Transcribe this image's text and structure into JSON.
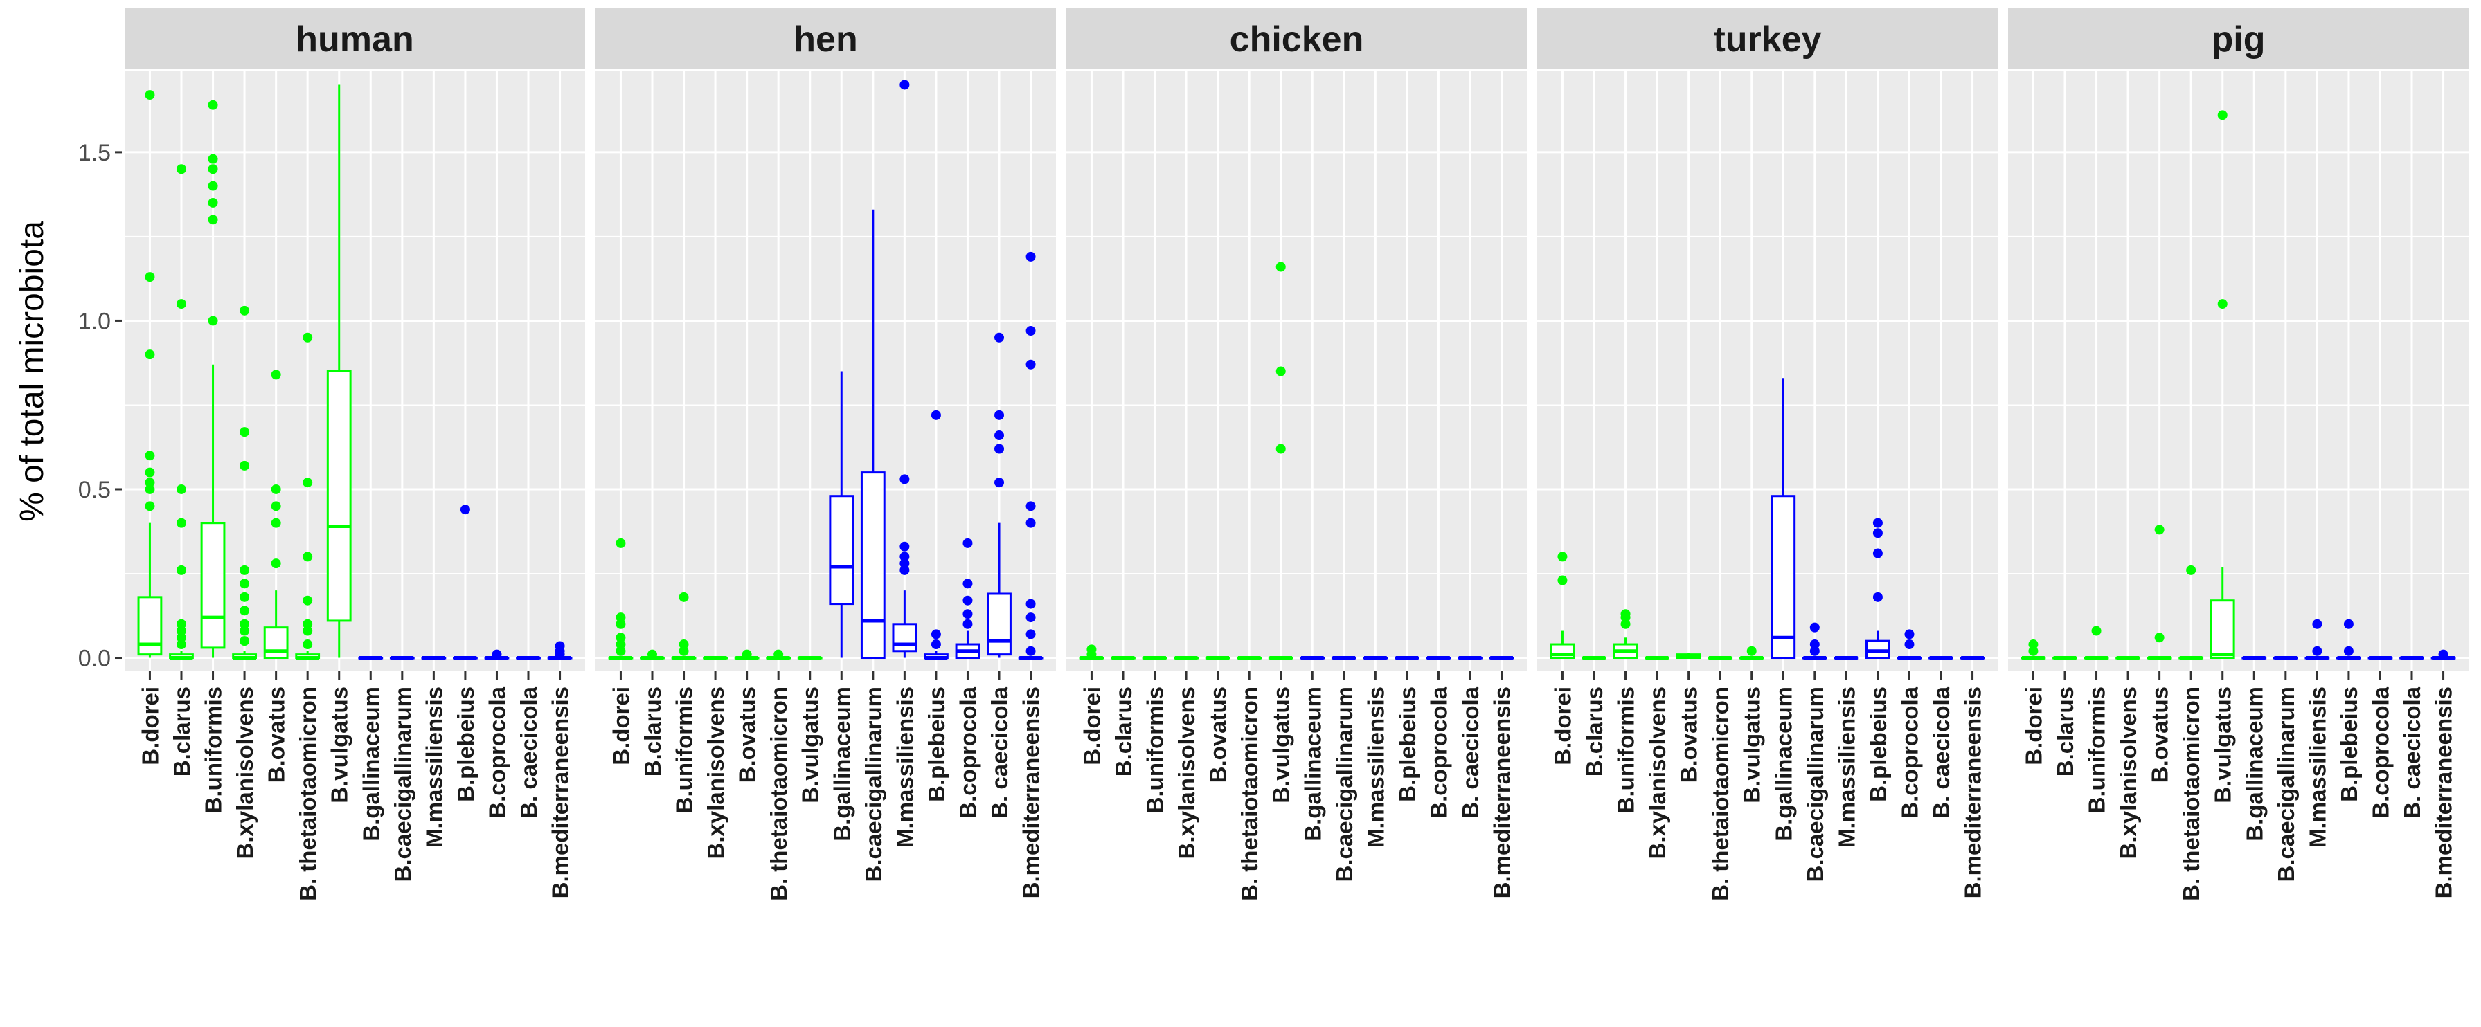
{
  "chart_data": {
    "type": "box",
    "ylabel": "% of total microbiota",
    "xlabel": "",
    "ylim": [
      -0.04,
      1.74
    ],
    "yticks": [
      0.0,
      0.5,
      1.0,
      1.5
    ],
    "ytick_labels": [
      "0.0",
      "0.5",
      "1.0",
      "1.5"
    ],
    "grid": true,
    "colors": {
      "group_a": "#00ff00",
      "group_b": "#0000ff",
      "panel_bg": "#ebebeb",
      "strip_bg": "#d9d9d9",
      "grid": "#ffffff"
    },
    "categories": [
      "B.dorei",
      "B.clarus",
      "B.uniformis",
      "B.xylanisolvens",
      "B.ovatus",
      "B. thetaiotaomicron",
      "B.vulgatus",
      "B.gallinaceum",
      "B.caecigallinarum",
      "M.massiliensis",
      "B.plebeius",
      "B.coprocola",
      "B. caecicola",
      "B.mediterraneensis"
    ],
    "category_color_group": [
      "group_a",
      "group_a",
      "group_a",
      "group_a",
      "group_a",
      "group_a",
      "group_a",
      "group_b",
      "group_b",
      "group_b",
      "group_b",
      "group_b",
      "group_b",
      "group_b"
    ],
    "facets": [
      {
        "name": "human",
        "boxes": [
          {
            "q1": 0.01,
            "med": 0.04,
            "q3": 0.18,
            "lo": 0.0,
            "hi": 0.4,
            "out": [
              0.45,
              0.5,
              0.52,
              0.55,
              0.6,
              0.9,
              1.13,
              1.67
            ]
          },
          {
            "q1": 0.0,
            "med": 0.0,
            "q3": 0.01,
            "lo": 0.0,
            "hi": 0.02,
            "out": [
              0.04,
              0.06,
              0.08,
              0.1,
              0.26,
              0.4,
              0.5,
              1.05,
              1.45
            ]
          },
          {
            "q1": 0.03,
            "med": 0.12,
            "q3": 0.4,
            "lo": 0.0,
            "hi": 0.87,
            "out": [
              1.0,
              1.3,
              1.35,
              1.4,
              1.45,
              1.48,
              1.64
            ]
          },
          {
            "q1": 0.0,
            "med": 0.0,
            "q3": 0.01,
            "lo": 0.0,
            "hi": 0.02,
            "out": [
              0.05,
              0.08,
              0.1,
              0.14,
              0.18,
              0.22,
              0.26,
              0.57,
              0.67,
              1.03
            ]
          },
          {
            "q1": 0.0,
            "med": 0.02,
            "q3": 0.09,
            "lo": 0.0,
            "hi": 0.2,
            "out": [
              0.28,
              0.4,
              0.45,
              0.5,
              0.84
            ]
          },
          {
            "q1": 0.0,
            "med": 0.0,
            "q3": 0.01,
            "lo": 0.0,
            "hi": 0.02,
            "out": [
              0.04,
              0.08,
              0.1,
              0.17,
              0.3,
              0.52,
              0.95
            ]
          },
          {
            "q1": 0.11,
            "med": 0.39,
            "q3": 0.85,
            "lo": 0.0,
            "hi": 1.7,
            "out": []
          },
          {
            "q1": 0.0,
            "med": 0.0,
            "q3": 0.0,
            "lo": 0.0,
            "hi": 0.0,
            "out": []
          },
          {
            "q1": 0.0,
            "med": 0.0,
            "q3": 0.0,
            "lo": 0.0,
            "hi": 0.0,
            "out": []
          },
          {
            "q1": 0.0,
            "med": 0.0,
            "q3": 0.0,
            "lo": 0.0,
            "hi": 0.0,
            "out": []
          },
          {
            "q1": 0.0,
            "med": 0.0,
            "q3": 0.0,
            "lo": 0.0,
            "hi": 0.0,
            "out": [
              0.44
            ]
          },
          {
            "q1": 0.0,
            "med": 0.0,
            "q3": 0.0,
            "lo": 0.0,
            "hi": 0.0,
            "out": [
              0.01
            ]
          },
          {
            "q1": 0.0,
            "med": 0.0,
            "q3": 0.0,
            "lo": 0.0,
            "hi": 0.0,
            "out": []
          },
          {
            "q1": 0.0,
            "med": 0.0,
            "q3": 0.0,
            "lo": 0.0,
            "hi": 0.0,
            "out": [
              0.01,
              0.02,
              0.035
            ]
          }
        ]
      },
      {
        "name": "hen",
        "boxes": [
          {
            "q1": 0.0,
            "med": 0.0,
            "q3": 0.0,
            "lo": 0.0,
            "hi": 0.0,
            "out": [
              0.02,
              0.04,
              0.06,
              0.1,
              0.12,
              0.34
            ]
          },
          {
            "q1": 0.0,
            "med": 0.0,
            "q3": 0.0,
            "lo": 0.0,
            "hi": 0.0,
            "out": [
              0.01
            ]
          },
          {
            "q1": 0.0,
            "med": 0.0,
            "q3": 0.0,
            "lo": 0.0,
            "hi": 0.0,
            "out": [
              0.02,
              0.04,
              0.18
            ]
          },
          {
            "q1": 0.0,
            "med": 0.0,
            "q3": 0.0,
            "lo": 0.0,
            "hi": 0.0,
            "out": []
          },
          {
            "q1": 0.0,
            "med": 0.0,
            "q3": 0.0,
            "lo": 0.0,
            "hi": 0.0,
            "out": [
              0.01
            ]
          },
          {
            "q1": 0.0,
            "med": 0.0,
            "q3": 0.0,
            "lo": 0.0,
            "hi": 0.0,
            "out": [
              0.01
            ]
          },
          {
            "q1": 0.0,
            "med": 0.0,
            "q3": 0.0,
            "lo": 0.0,
            "hi": 0.0,
            "out": []
          },
          {
            "q1": 0.16,
            "med": 0.27,
            "q3": 0.48,
            "lo": 0.0,
            "hi": 0.85,
            "out": []
          },
          {
            "q1": 0.0,
            "med": 0.11,
            "q3": 0.55,
            "lo": 0.0,
            "hi": 1.33,
            "out": []
          },
          {
            "q1": 0.02,
            "med": 0.04,
            "q3": 0.1,
            "lo": 0.0,
            "hi": 0.2,
            "out": [
              0.26,
              0.28,
              0.3,
              0.33,
              0.53,
              1.7
            ]
          },
          {
            "q1": 0.0,
            "med": 0.0,
            "q3": 0.01,
            "lo": 0.0,
            "hi": 0.02,
            "out": [
              0.04,
              0.07,
              0.72
            ]
          },
          {
            "q1": 0.0,
            "med": 0.02,
            "q3": 0.04,
            "lo": 0.0,
            "hi": 0.08,
            "out": [
              0.1,
              0.13,
              0.17,
              0.22,
              0.34
            ]
          },
          {
            "q1": 0.01,
            "med": 0.05,
            "q3": 0.19,
            "lo": 0.0,
            "hi": 0.4,
            "out": [
              0.52,
              0.62,
              0.66,
              0.72,
              0.95
            ]
          },
          {
            "q1": 0.0,
            "med": 0.0,
            "q3": 0.0,
            "lo": 0.0,
            "hi": 0.0,
            "out": [
              0.02,
              0.07,
              0.12,
              0.16,
              0.4,
              0.45,
              0.87,
              0.97,
              1.19
            ]
          }
        ]
      },
      {
        "name": "chicken",
        "boxes": [
          {
            "q1": 0.0,
            "med": 0.0,
            "q3": 0.0,
            "lo": 0.0,
            "hi": 0.0,
            "out": [
              0.01,
              0.025
            ]
          },
          {
            "q1": 0.0,
            "med": 0.0,
            "q3": 0.0,
            "lo": 0.0,
            "hi": 0.0,
            "out": []
          },
          {
            "q1": 0.0,
            "med": 0.0,
            "q3": 0.0,
            "lo": 0.0,
            "hi": 0.0,
            "out": []
          },
          {
            "q1": 0.0,
            "med": 0.0,
            "q3": 0.0,
            "lo": 0.0,
            "hi": 0.0,
            "out": []
          },
          {
            "q1": 0.0,
            "med": 0.0,
            "q3": 0.0,
            "lo": 0.0,
            "hi": 0.0,
            "out": []
          },
          {
            "q1": 0.0,
            "med": 0.0,
            "q3": 0.0,
            "lo": 0.0,
            "hi": 0.0,
            "out": []
          },
          {
            "q1": 0.0,
            "med": 0.0,
            "q3": 0.0,
            "lo": 0.0,
            "hi": 0.0,
            "out": [
              0.62,
              0.85,
              1.16
            ]
          },
          {
            "q1": 0.0,
            "med": 0.0,
            "q3": 0.0,
            "lo": 0.0,
            "hi": 0.0,
            "out": []
          },
          {
            "q1": 0.0,
            "med": 0.0,
            "q3": 0.0,
            "lo": 0.0,
            "hi": 0.0,
            "out": []
          },
          {
            "q1": 0.0,
            "med": 0.0,
            "q3": 0.0,
            "lo": 0.0,
            "hi": 0.0,
            "out": []
          },
          {
            "q1": 0.0,
            "med": 0.0,
            "q3": 0.0,
            "lo": 0.0,
            "hi": 0.0,
            "out": []
          },
          {
            "q1": 0.0,
            "med": 0.0,
            "q3": 0.0,
            "lo": 0.0,
            "hi": 0.0,
            "out": []
          },
          {
            "q1": 0.0,
            "med": 0.0,
            "q3": 0.0,
            "lo": 0.0,
            "hi": 0.0,
            "out": []
          },
          {
            "q1": 0.0,
            "med": 0.0,
            "q3": 0.0,
            "lo": 0.0,
            "hi": 0.0,
            "out": []
          }
        ]
      },
      {
        "name": "turkey",
        "boxes": [
          {
            "q1": 0.0,
            "med": 0.01,
            "q3": 0.04,
            "lo": 0.0,
            "hi": 0.08,
            "out": [
              0.23,
              0.3
            ]
          },
          {
            "q1": 0.0,
            "med": 0.0,
            "q3": 0.0,
            "lo": 0.0,
            "hi": 0.0,
            "out": []
          },
          {
            "q1": 0.0,
            "med": 0.02,
            "q3": 0.04,
            "lo": 0.0,
            "hi": 0.06,
            "out": [
              0.1,
              0.12,
              0.13
            ]
          },
          {
            "q1": 0.0,
            "med": 0.0,
            "q3": 0.0,
            "lo": 0.0,
            "hi": 0.0,
            "out": []
          },
          {
            "q1": 0.0,
            "med": 0.005,
            "q3": 0.01,
            "lo": 0.0,
            "hi": 0.015,
            "out": []
          },
          {
            "q1": 0.0,
            "med": 0.0,
            "q3": 0.0,
            "lo": 0.0,
            "hi": 0.0,
            "out": []
          },
          {
            "q1": 0.0,
            "med": 0.0,
            "q3": 0.0,
            "lo": 0.0,
            "hi": 0.0,
            "out": [
              0.02
            ]
          },
          {
            "q1": 0.0,
            "med": 0.06,
            "q3": 0.48,
            "lo": 0.0,
            "hi": 0.83,
            "out": []
          },
          {
            "q1": 0.0,
            "med": 0.0,
            "q3": 0.0,
            "lo": 0.0,
            "hi": 0.0,
            "out": [
              0.02,
              0.04,
              0.09
            ]
          },
          {
            "q1": 0.0,
            "med": 0.0,
            "q3": 0.0,
            "lo": 0.0,
            "hi": 0.0,
            "out": []
          },
          {
            "q1": 0.0,
            "med": 0.02,
            "q3": 0.05,
            "lo": 0.0,
            "hi": 0.08,
            "out": [
              0.18,
              0.31,
              0.37,
              0.4
            ]
          },
          {
            "q1": 0.0,
            "med": 0.0,
            "q3": 0.0,
            "lo": 0.0,
            "hi": 0.0,
            "out": [
              0.04,
              0.07
            ]
          },
          {
            "q1": 0.0,
            "med": 0.0,
            "q3": 0.0,
            "lo": 0.0,
            "hi": 0.0,
            "out": []
          },
          {
            "q1": 0.0,
            "med": 0.0,
            "q3": 0.0,
            "lo": 0.0,
            "hi": 0.0,
            "out": []
          }
        ]
      },
      {
        "name": "pig",
        "boxes": [
          {
            "q1": 0.0,
            "med": 0.0,
            "q3": 0.0,
            "lo": 0.0,
            "hi": 0.0,
            "out": [
              0.02,
              0.04
            ]
          },
          {
            "q1": 0.0,
            "med": 0.0,
            "q3": 0.0,
            "lo": 0.0,
            "hi": 0.0,
            "out": []
          },
          {
            "q1": 0.0,
            "med": 0.0,
            "q3": 0.0,
            "lo": 0.0,
            "hi": 0.0,
            "out": [
              0.08
            ]
          },
          {
            "q1": 0.0,
            "med": 0.0,
            "q3": 0.0,
            "lo": 0.0,
            "hi": 0.0,
            "out": []
          },
          {
            "q1": 0.0,
            "med": 0.0,
            "q3": 0.0,
            "lo": 0.0,
            "hi": 0.0,
            "out": [
              0.06,
              0.38
            ]
          },
          {
            "q1": 0.0,
            "med": 0.0,
            "q3": 0.0,
            "lo": 0.0,
            "hi": 0.0,
            "out": [
              0.26
            ]
          },
          {
            "q1": 0.0,
            "med": 0.01,
            "q3": 0.17,
            "lo": 0.0,
            "hi": 0.27,
            "out": [
              1.05,
              1.61
            ]
          },
          {
            "q1": 0.0,
            "med": 0.0,
            "q3": 0.0,
            "lo": 0.0,
            "hi": 0.0,
            "out": []
          },
          {
            "q1": 0.0,
            "med": 0.0,
            "q3": 0.0,
            "lo": 0.0,
            "hi": 0.0,
            "out": []
          },
          {
            "q1": 0.0,
            "med": 0.0,
            "q3": 0.0,
            "lo": 0.0,
            "hi": 0.0,
            "out": [
              0.02,
              0.1
            ]
          },
          {
            "q1": 0.0,
            "med": 0.0,
            "q3": 0.0,
            "lo": 0.0,
            "hi": 0.0,
            "out": [
              0.02,
              0.1
            ]
          },
          {
            "q1": 0.0,
            "med": 0.0,
            "q3": 0.0,
            "lo": 0.0,
            "hi": 0.0,
            "out": []
          },
          {
            "q1": 0.0,
            "med": 0.0,
            "q3": 0.0,
            "lo": 0.0,
            "hi": 0.0,
            "out": []
          },
          {
            "q1": 0.0,
            "med": 0.0,
            "q3": 0.0,
            "lo": 0.0,
            "hi": 0.0,
            "out": [
              0.01
            ]
          }
        ]
      }
    ]
  }
}
